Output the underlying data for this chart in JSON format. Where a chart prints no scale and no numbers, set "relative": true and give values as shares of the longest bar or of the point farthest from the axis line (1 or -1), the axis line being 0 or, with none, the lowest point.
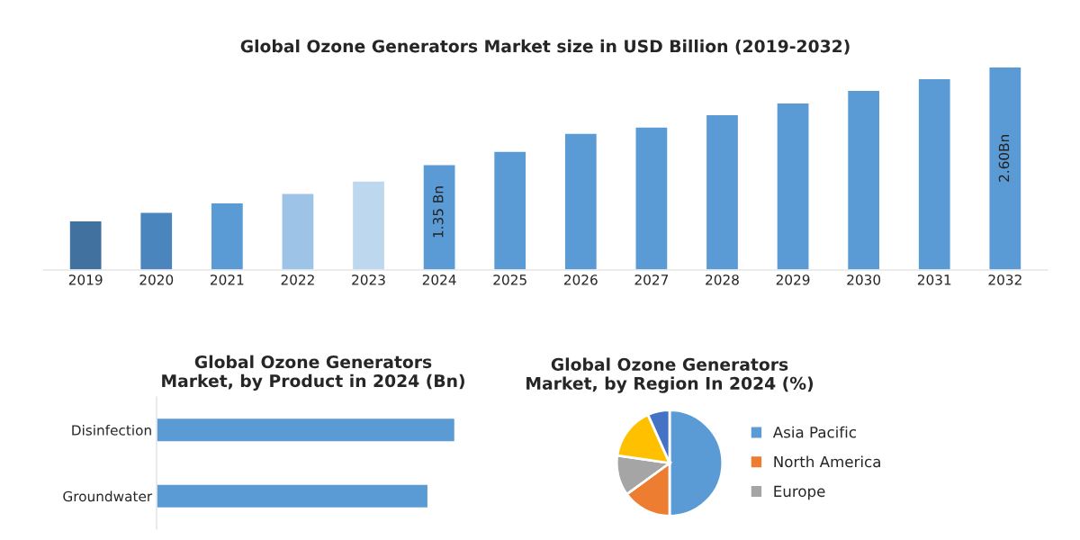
{
  "chart_data": [
    {
      "type": "bar",
      "title": "Global Ozone Generators Market size in USD Billion (2019-2032)",
      "categories": [
        "2019",
        "2020",
        "2021",
        "2022",
        "2023",
        "2024",
        "2025",
        "2026",
        "2027",
        "2028",
        "2029",
        "2030",
        "2031",
        "2032"
      ],
      "values": [
        0.63,
        0.74,
        0.86,
        0.98,
        1.14,
        1.35,
        1.52,
        1.75,
        1.83,
        1.99,
        2.14,
        2.3,
        2.45,
        2.6
      ],
      "colors": [
        "#41729f",
        "#4a86bd",
        "#5b9bd5",
        "#9dc3e6",
        "#bdd7ee",
        "#5b9bd5",
        "#5b9bd5",
        "#5b9bd5",
        "#5b9bd5",
        "#5b9bd5",
        "#5b9bd5",
        "#5b9bd5",
        "#5b9bd5",
        "#5b9bd5"
      ],
      "value_labels": [
        null,
        null,
        null,
        null,
        null,
        "1.35 Bn",
        null,
        null,
        null,
        null,
        null,
        null,
        null,
        "2.60Bn"
      ],
      "tick_labels": "x",
      "grid": false
    },
    {
      "type": "bar",
      "orientation": "horizontal",
      "relative": true,
      "title": "Global Ozone Generators Market, by Product in 2024 (Bn)",
      "categories": [
        "Disinfection",
        "Groundwater"
      ],
      "values": [
        1,
        0.91
      ],
      "color": "#5b9bd5",
      "tick_labels": "y",
      "grid": false
    },
    {
      "type": "pie",
      "title": "Global Ozone Generators Market, by Region In 2024 (%)",
      "categories": [
        "Asia Pacific",
        "North America",
        "Europe",
        null,
        null
      ],
      "values": [
        50,
        15,
        12.3,
        16,
        6.7
      ],
      "colors": [
        "#5b9bd5",
        "#ed7d31",
        "#a5a5a5",
        "#ffc000",
        "#4472c4"
      ],
      "legend": "right"
    }
  ]
}
